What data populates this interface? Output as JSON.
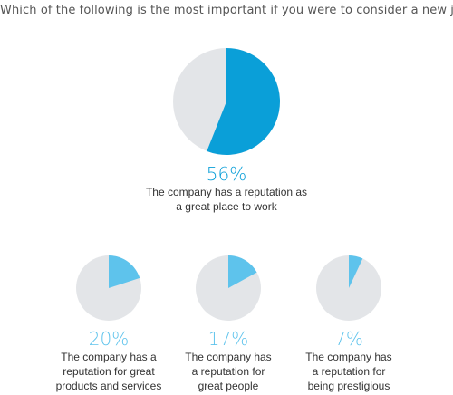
{
  "question": "Which of the following is the most important if you were to consider a new job?",
  "colors": {
    "main_accent": "#0a9fd8",
    "small_accent": "#5ec3ec",
    "remainder": "#e3e5e8"
  },
  "chart_data": [
    {
      "type": "pie",
      "value_label": "56%",
      "values": [
        56,
        44
      ],
      "description_lines": [
        "The company has a reputation as",
        "a great place to work"
      ]
    },
    {
      "type": "pie",
      "value_label": "20%",
      "values": [
        20,
        80
      ],
      "description_lines": [
        "The company has a",
        "reputation for great",
        "products and services"
      ]
    },
    {
      "type": "pie",
      "value_label": "17%",
      "values": [
        17,
        83
      ],
      "description_lines": [
        "The company has",
        "a reputation for",
        "great people"
      ]
    },
    {
      "type": "pie",
      "value_label": "7%",
      "values": [
        7,
        93
      ],
      "description_lines": [
        "The company has",
        "a reputation for",
        "being prestigious"
      ]
    }
  ]
}
